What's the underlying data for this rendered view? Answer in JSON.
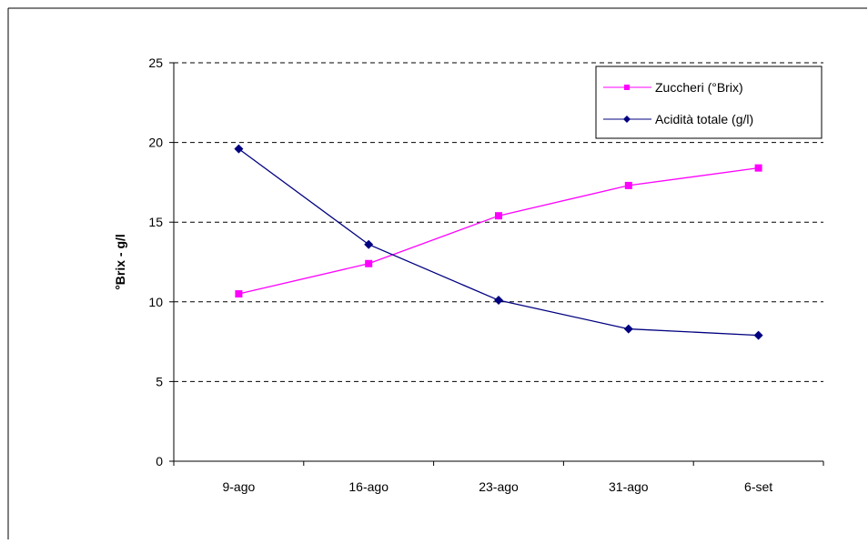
{
  "chart_data": {
    "type": "line",
    "title": "",
    "xlabel": "",
    "ylabel": "°Brix - g/l",
    "categories": [
      "9-ago",
      "16-ago",
      "23-ago",
      "31-ago",
      "6-set"
    ],
    "ylim": [
      0,
      25
    ],
    "yticks": [
      0,
      5,
      10,
      15,
      20,
      25
    ],
    "grid": "horizontal dashed",
    "legend_position": "top-right",
    "series": [
      {
        "name": "Zuccheri (°Brix)",
        "values": [
          10.5,
          12.4,
          15.4,
          17.3,
          18.4
        ],
        "color": "#ff00ff",
        "marker": "square"
      },
      {
        "name": "Acidità totale (g/l)",
        "values": [
          19.6,
          13.6,
          10.1,
          8.3,
          7.9
        ],
        "color": "#000080",
        "marker": "diamond"
      }
    ]
  }
}
